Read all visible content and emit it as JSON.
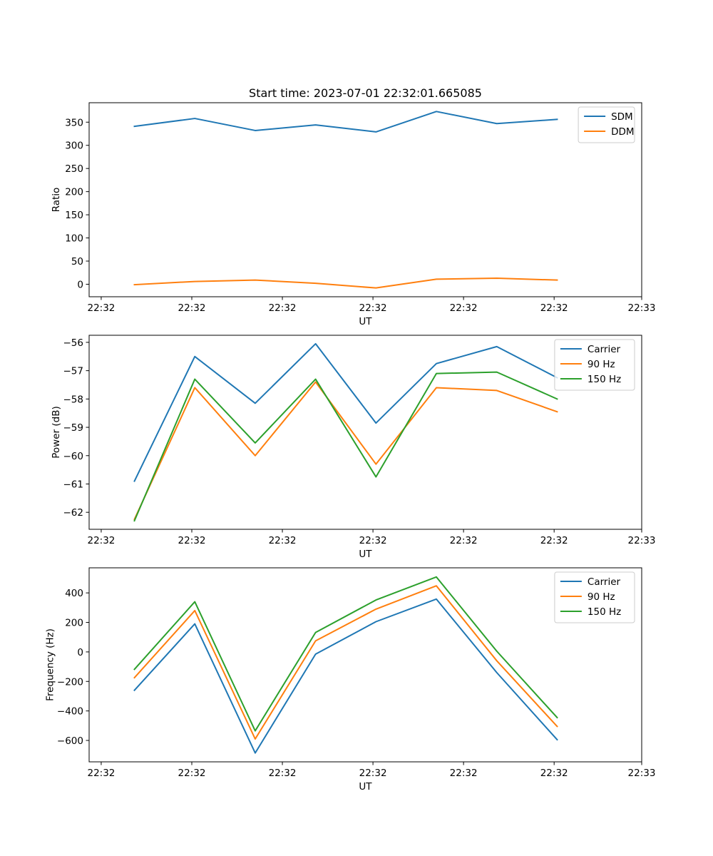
{
  "chart_data": [
    {
      "type": "line",
      "title": "Start time: 2023-07-01 22:32:01.665085",
      "xlabel": "UT",
      "ylabel": "Ratio",
      "x": [
        1,
        2,
        3,
        4,
        5,
        6,
        7,
        8
      ],
      "xlim": [
        0.25,
        9.4
      ],
      "xticks": [
        0.45,
        1.95,
        3.45,
        4.95,
        6.45,
        7.95,
        9.4
      ],
      "xtick_labels": [
        "22:32",
        "22:32",
        "22:32",
        "22:32",
        "22:32",
        "22:32",
        "22:33"
      ],
      "ylim": [
        -27,
        392
      ],
      "yticks": [
        0,
        50,
        100,
        150,
        200,
        250,
        300,
        350
      ],
      "ytick_labels": [
        "0",
        "50",
        "100",
        "150",
        "200",
        "250",
        "300",
        "350"
      ],
      "legend_position": "top-right",
      "grid": false,
      "series": [
        {
          "name": "SDM",
          "color": "#1f77b4",
          "values": [
            341,
            358,
            332,
            344,
            329,
            373,
            347,
            356
          ]
        },
        {
          "name": "DDM",
          "color": "#ff7f0e",
          "values": [
            -1,
            6,
            9,
            2,
            -8,
            11,
            13,
            9
          ]
        }
      ]
    },
    {
      "type": "line",
      "title": "",
      "xlabel": "UT",
      "ylabel": "Power (dB)",
      "x": [
        1,
        2,
        3,
        4,
        5,
        6,
        7,
        8
      ],
      "xlim": [
        0.25,
        9.4
      ],
      "xticks": [
        0.45,
        1.95,
        3.45,
        4.95,
        6.45,
        7.95,
        9.4
      ],
      "xtick_labels": [
        "22:32",
        "22:32",
        "22:32",
        "22:32",
        "22:32",
        "22:32",
        "22:33"
      ],
      "ylim": [
        -62.6,
        -55.75
      ],
      "yticks": [
        -62,
        -61,
        -60,
        -59,
        -58,
        -57,
        -56
      ],
      "ytick_labels": [
        "−62",
        "−61",
        "−60",
        "−59",
        "−58",
        "−57",
        "−56"
      ],
      "legend_position": "top-right",
      "grid": false,
      "series": [
        {
          "name": "Carrier",
          "color": "#1f77b4",
          "values": [
            -60.9,
            -56.5,
            -58.15,
            -56.05,
            -58.85,
            -56.75,
            -56.15,
            -57.25
          ]
        },
        {
          "name": "90 Hz",
          "color": "#ff7f0e",
          "values": [
            -62.25,
            -57.6,
            -60.0,
            -57.4,
            -60.3,
            -57.6,
            -57.7,
            -58.45
          ]
        },
        {
          "name": "150 Hz",
          "color": "#2ca02c",
          "values": [
            -62.3,
            -57.3,
            -59.55,
            -57.3,
            -60.75,
            -57.1,
            -57.05,
            -58.0
          ]
        }
      ]
    },
    {
      "type": "line",
      "title": "",
      "xlabel": "UT",
      "ylabel": "Frequency (Hz)",
      "x": [
        1,
        2,
        3,
        4,
        5,
        6,
        7,
        8
      ],
      "xlim": [
        0.25,
        9.4
      ],
      "xticks": [
        0.45,
        1.95,
        3.45,
        4.95,
        6.45,
        7.95,
        9.4
      ],
      "xtick_labels": [
        "22:32",
        "22:32",
        "22:32",
        "22:32",
        "22:32",
        "22:32",
        "22:33"
      ],
      "ylim": [
        -745,
        570
      ],
      "yticks": [
        -600,
        -400,
        -200,
        0,
        200,
        400
      ],
      "ytick_labels": [
        "−600",
        "−400",
        "−200",
        "0",
        "200",
        "400"
      ],
      "legend_position": "top-right",
      "grid": false,
      "series": [
        {
          "name": "Carrier",
          "color": "#1f77b4",
          "values": [
            -260,
            190,
            -685,
            -15,
            205,
            358,
            -140,
            -595
          ]
        },
        {
          "name": "90 Hz",
          "color": "#ff7f0e",
          "values": [
            -175,
            280,
            -590,
            75,
            290,
            448,
            -60,
            -505
          ]
        },
        {
          "name": "150 Hz",
          "color": "#2ca02c",
          "values": [
            -118,
            340,
            -535,
            132,
            352,
            508,
            5,
            -445
          ]
        }
      ]
    }
  ]
}
